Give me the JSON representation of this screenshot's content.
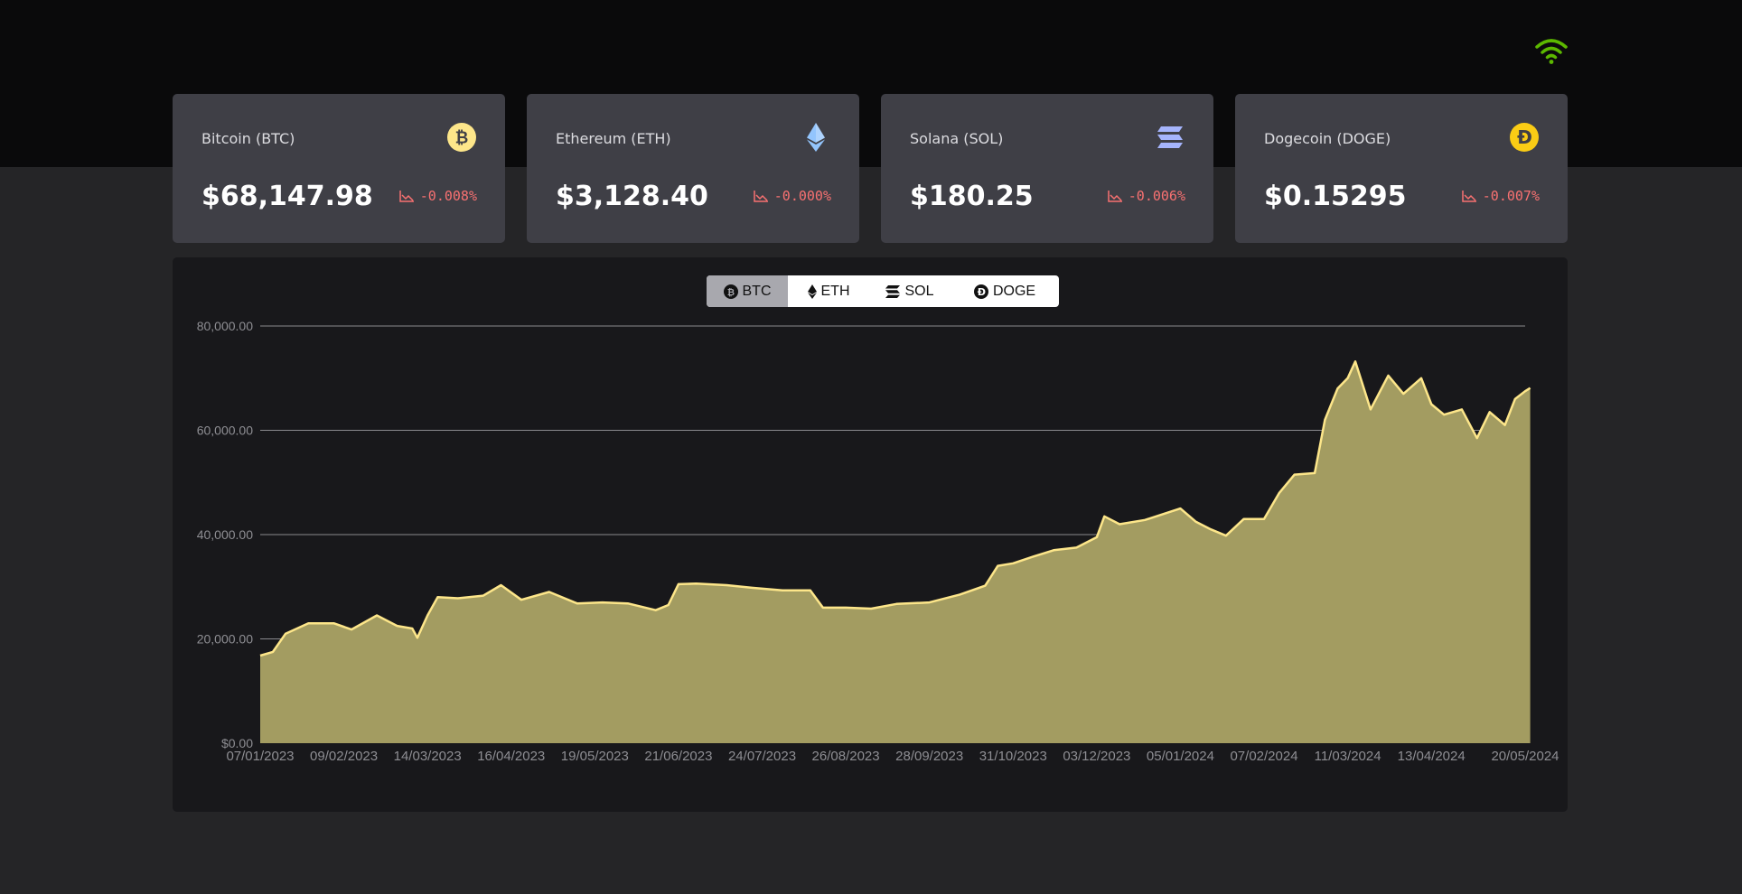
{
  "status": {
    "icon": "wifi-icon",
    "color": "#5cb800"
  },
  "cards": [
    {
      "name": "Bitcoin (BTC)",
      "price": "$68,147.98",
      "change": "-0.008%",
      "icon": "bitcoin-icon",
      "icon_color": "#fde68a"
    },
    {
      "name": "Ethereum (ETH)",
      "price": "$3,128.40",
      "change": "-0.000%",
      "icon": "ethereum-icon",
      "icon_color": "#93c5fd"
    },
    {
      "name": "Solana (SOL)",
      "price": "$180.25",
      "change": "-0.006%",
      "icon": "solana-icon",
      "icon_color": "#a5b4fc"
    },
    {
      "name": "Dogecoin (DOGE)",
      "price": "$0.15295",
      "change": "-0.007%",
      "icon": "dogecoin-icon",
      "icon_color": "#facc15"
    }
  ],
  "change_color": "#f87171",
  "tabs": [
    {
      "label": "BTC",
      "icon": "bitcoin-icon",
      "active": true
    },
    {
      "label": "ETH",
      "icon": "ethereum-icon",
      "active": false
    },
    {
      "label": "SOL",
      "icon": "solana-icon",
      "active": false
    },
    {
      "label": "DOGE",
      "icon": "dogecoin-icon",
      "active": false
    }
  ],
  "chart_data": {
    "type": "area",
    "title": "",
    "xlabel": "",
    "ylabel": "",
    "ylim": [
      0,
      80000
    ],
    "yticks": [
      "$0.00",
      "20,000.00",
      "40,000.00",
      "60,000.00",
      "80,000.00"
    ],
    "ytick_values": [
      0,
      20000,
      40000,
      60000,
      80000
    ],
    "xticks": [
      "07/01/2023",
      "09/02/2023",
      "14/03/2023",
      "16/04/2023",
      "19/05/2023",
      "21/06/2023",
      "24/07/2023",
      "26/08/2023",
      "28/09/2023",
      "31/10/2023",
      "03/12/2023",
      "05/01/2024",
      "07/02/2024",
      "11/03/2024",
      "13/04/2024",
      "20/05/2024"
    ],
    "grid": true,
    "line_color": "#fde68a",
    "fill_color": "#a39c61",
    "series": [
      {
        "x": [
          "07/01/2023",
          "12/01/2023",
          "17/01/2023",
          "26/01/2023",
          "05/02/2023",
          "12/02/2023",
          "22/02/2023",
          "02/03/2023",
          "08/03/2023",
          "10/03/2023",
          "14/03/2023",
          "18/03/2023",
          "26/03/2023",
          "05/04/2023",
          "12/04/2023",
          "20/04/2023",
          "01/05/2023",
          "12/05/2023",
          "22/05/2023",
          "01/06/2023",
          "12/06/2023",
          "17/06/2023",
          "21/06/2023",
          "28/06/2023",
          "10/07/2023",
          "20/07/2023",
          "01/08/2023",
          "12/08/2023",
          "17/08/2023",
          "26/08/2023",
          "05/09/2023",
          "15/09/2023",
          "28/09/2023",
          "10/10/2023",
          "20/10/2023",
          "25/10/2023",
          "31/10/2023",
          "08/11/2023",
          "16/11/2023",
          "25/11/2023",
          "03/12/2023",
          "06/12/2023",
          "12/12/2023",
          "22/12/2023",
          "05/01/2024",
          "11/01/2024",
          "17/01/2024",
          "23/01/2024",
          "30/01/2024",
          "07/02/2024",
          "13/02/2024",
          "19/02/2024",
          "27/02/2024",
          "02/03/2024",
          "07/03/2024",
          "11/03/2024",
          "14/03/2024",
          "20/03/2024",
          "27/03/2024",
          "02/04/2024",
          "09/04/2024",
          "13/04/2024",
          "18/04/2024",
          "25/04/2024",
          "01/05/2024",
          "06/05/2024",
          "12/05/2024",
          "16/05/2024",
          "20/05/2024",
          "22/05/2024"
        ],
        "values": [
          16800,
          17500,
          21000,
          23000,
          23000,
          21800,
          24500,
          22500,
          22000,
          20200,
          24500,
          28000,
          27800,
          28300,
          30300,
          27500,
          29000,
          26800,
          27000,
          26800,
          25500,
          26500,
          30500,
          30600,
          30300,
          29800,
          29300,
          29300,
          26000,
          26000,
          25800,
          26700,
          27000,
          28500,
          30200,
          34000,
          34500,
          35800,
          37000,
          37500,
          39500,
          43500,
          42000,
          42800,
          45000,
          42500,
          41000,
          39800,
          43000,
          43000,
          48000,
          51500,
          51800,
          62000,
          68000,
          70000,
          73200,
          64000,
          70500,
          67000,
          70000,
          65000,
          63000,
          64000,
          58500,
          63500,
          61000,
          66000,
          67500,
          68100
        ]
      }
    ]
  }
}
